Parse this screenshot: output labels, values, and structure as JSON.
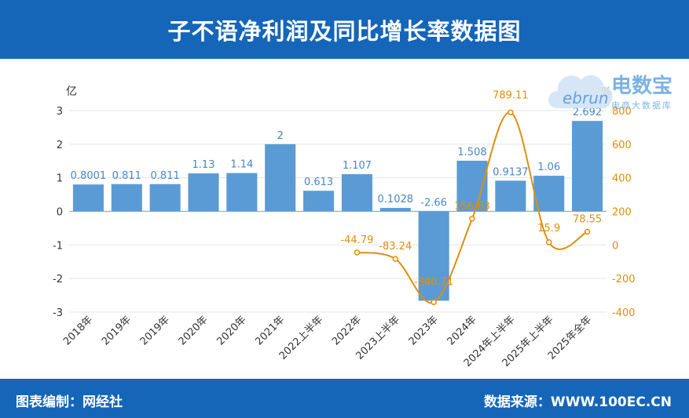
{
  "header": {
    "title": "子不语净利润及同比增长率数据图"
  },
  "footer": {
    "left": "图表编制：网经社",
    "right": "数据来源：WWW.100EC.CN"
  },
  "logo": {
    "mark": "ebrun",
    "name": "电数宝",
    "tagline": "电商大数据库"
  },
  "colors": {
    "bar": "#5b9bd5",
    "line": "#e08e0b",
    "header": "#1566b8",
    "axis_left": "#333333",
    "axis_right": "#e08e0b"
  },
  "chart_data": {
    "type": "bar",
    "categories": [
      "2018年",
      "2019年",
      "2019年",
      "2020年",
      "2020年",
      "2021年",
      "2022上半年",
      "2022年",
      "2023上半年",
      "2023年",
      "2024年",
      "2024年上半年",
      "2025年上半年",
      "2025年全年"
    ],
    "series": [
      {
        "type": "bar",
        "values": [
          0.8001,
          0.811,
          0.811,
          1.13,
          1.14,
          2,
          0.613,
          1.107,
          0.1028,
          -2.66,
          1.508,
          0.9137,
          1.06,
          2.692
        ],
        "labels": [
          "0.8001",
          "0.811",
          "0.811",
          "1.13",
          "1.14",
          "2",
          "0.613",
          "1.107",
          "0.1028",
          "-2.66",
          "1.508",
          "0.9137",
          "1.06",
          "2.692"
        ]
      },
      {
        "type": "line",
        "values": [
          null,
          null,
          null,
          null,
          null,
          null,
          null,
          -44.79,
          -83.24,
          -340.71,
          156.63,
          789.11,
          15.9,
          78.55
        ],
        "labels": [
          "",
          "",
          "",
          "",
          "",
          "",
          "",
          "-44.79",
          "-83.24",
          "-340.71",
          "156.63",
          "789.11",
          "15.9",
          "78.55"
        ]
      }
    ],
    "y_left": {
      "label": "亿",
      "ylim": [
        -3,
        3
      ],
      "ticks": [
        3,
        2,
        1,
        0,
        -1,
        -2,
        -3
      ]
    },
    "y_right": {
      "label": "%",
      "ylim": [
        -400,
        800
      ],
      "ticks": [
        800,
        600,
        400,
        200,
        0,
        -200,
        -400
      ]
    },
    "grid": true
  }
}
